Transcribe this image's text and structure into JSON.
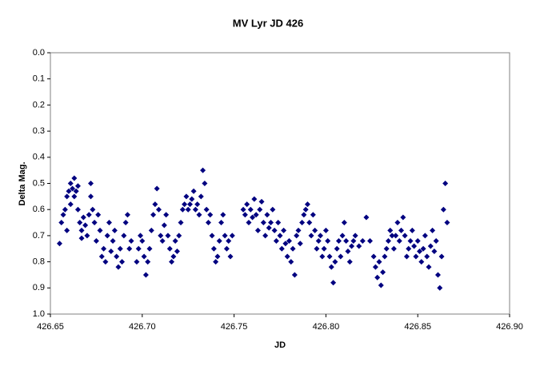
{
  "chart_data": {
    "type": "scatter",
    "title": "MV Lyr JD 426",
    "xlabel": "JD",
    "ylabel": "Delta Mag.",
    "color": "#000080",
    "marker": "diamond",
    "y_inverted": true,
    "xlim": [
      426.65,
      426.9
    ],
    "xticks": [
      426.65,
      {
        "value": 426.7,
        "label": "426.70"
      },
      426.75,
      {
        "value": 426.8,
        "label": "426.80"
      },
      426.85,
      {
        "value": 426.9,
        "label": "426.90"
      }
    ],
    "ylim": [
      0,
      1
    ],
    "yticks": [
      {
        "value": 0,
        "label": "0.0"
      },
      0.1,
      0.2,
      0.3,
      0.4,
      0.5,
      0.6,
      0.7,
      0.8,
      0.9,
      {
        "value": 1,
        "label": "1.0"
      }
    ],
    "x": [
      426.655,
      426.656,
      426.657,
      426.658,
      426.659,
      426.659,
      426.66,
      426.661,
      426.661,
      426.662,
      426.663,
      426.663,
      426.664,
      426.665,
      426.665,
      426.666,
      426.667,
      426.667,
      426.668,
      426.669,
      426.67,
      426.671,
      426.672,
      426.672,
      426.673,
      426.674,
      426.675,
      426.676,
      426.677,
      426.678,
      426.679,
      426.68,
      426.681,
      426.682,
      426.683,
      426.684,
      426.685,
      426.686,
      426.687,
      426.688,
      426.689,
      426.69,
      426.691,
      426.692,
      426.693,
      426.694,
      426.697,
      426.698,
      426.699,
      426.7,
      426.701,
      426.702,
      426.703,
      426.704,
      426.705,
      426.706,
      426.707,
      426.708,
      426.709,
      426.71,
      426.711,
      426.712,
      426.713,
      426.714,
      426.715,
      426.716,
      426.717,
      426.718,
      426.719,
      426.72,
      426.721,
      426.722,
      426.723,
      426.724,
      426.725,
      426.726,
      426.727,
      426.728,
      426.729,
      426.73,
      426.731,
      426.732,
      426.733,
      426.734,
      426.735,
      426.736,
      426.737,
      426.738,
      426.739,
      426.74,
      426.741,
      426.742,
      426.743,
      426.744,
      426.745,
      426.746,
      426.747,
      426.748,
      426.749,
      426.755,
      426.756,
      426.757,
      426.758,
      426.759,
      426.76,
      426.761,
      426.762,
      426.763,
      426.764,
      426.765,
      426.766,
      426.767,
      426.768,
      426.769,
      426.77,
      426.771,
      426.772,
      426.773,
      426.774,
      426.775,
      426.776,
      426.777,
      426.778,
      426.779,
      426.78,
      426.781,
      426.782,
      426.783,
      426.784,
      426.785,
      426.786,
      426.787,
      426.788,
      426.789,
      426.79,
      426.791,
      426.792,
      426.793,
      426.794,
      426.795,
      426.796,
      426.797,
      426.798,
      426.799,
      426.8,
      426.801,
      426.802,
      426.803,
      426.804,
      426.805,
      426.806,
      426.807,
      426.808,
      426.809,
      426.81,
      426.811,
      426.812,
      426.813,
      426.814,
      426.815,
      426.816,
      426.818,
      426.82,
      426.822,
      426.824,
      426.826,
      426.827,
      426.828,
      426.829,
      426.83,
      426.831,
      426.832,
      426.833,
      426.834,
      426.835,
      426.836,
      426.837,
      426.838,
      426.839,
      426.84,
      426.841,
      426.842,
      426.843,
      426.844,
      426.845,
      426.846,
      426.847,
      426.848,
      426.849,
      426.85,
      426.851,
      426.852,
      426.853,
      426.854,
      426.855,
      426.856,
      426.857,
      426.858,
      426.859,
      426.86,
      426.861,
      426.862,
      426.863,
      426.864,
      426.865,
      426.866
    ],
    "values": [
      0.73,
      0.65,
      0.62,
      0.6,
      0.55,
      0.68,
      0.53,
      0.58,
      0.5,
      0.52,
      0.48,
      0.55,
      0.53,
      0.51,
      0.6,
      0.65,
      0.68,
      0.71,
      0.63,
      0.66,
      0.7,
      0.62,
      0.55,
      0.5,
      0.6,
      0.65,
      0.72,
      0.62,
      0.68,
      0.78,
      0.75,
      0.8,
      0.7,
      0.65,
      0.76,
      0.72,
      0.68,
      0.78,
      0.82,
      0.75,
      0.8,
      0.7,
      0.65,
      0.62,
      0.75,
      0.72,
      0.8,
      0.75,
      0.7,
      0.72,
      0.78,
      0.85,
      0.8,
      0.75,
      0.68,
      0.62,
      0.58,
      0.52,
      0.6,
      0.7,
      0.72,
      0.66,
      0.62,
      0.7,
      0.75,
      0.8,
      0.78,
      0.72,
      0.76,
      0.7,
      0.65,
      0.6,
      0.58,
      0.55,
      0.6,
      0.58,
      0.56,
      0.53,
      0.6,
      0.58,
      0.62,
      0.55,
      0.45,
      0.5,
      0.6,
      0.65,
      0.62,
      0.7,
      0.75,
      0.8,
      0.78,
      0.72,
      0.65,
      0.62,
      0.7,
      0.75,
      0.72,
      0.78,
      0.7,
      0.6,
      0.62,
      0.58,
      0.65,
      0.6,
      0.63,
      0.56,
      0.62,
      0.68,
      0.6,
      0.57,
      0.65,
      0.7,
      0.62,
      0.67,
      0.65,
      0.6,
      0.68,
      0.72,
      0.65,
      0.7,
      0.75,
      0.68,
      0.73,
      0.78,
      0.72,
      0.8,
      0.75,
      0.85,
      0.7,
      0.68,
      0.73,
      0.65,
      0.62,
      0.6,
      0.58,
      0.65,
      0.7,
      0.62,
      0.68,
      0.75,
      0.72,
      0.7,
      0.78,
      0.75,
      0.68,
      0.72,
      0.78,
      0.82,
      0.88,
      0.8,
      0.75,
      0.72,
      0.78,
      0.7,
      0.65,
      0.72,
      0.76,
      0.8,
      0.74,
      0.72,
      0.7,
      0.74,
      0.72,
      0.63,
      0.72,
      0.78,
      0.82,
      0.86,
      0.8,
      0.89,
      0.84,
      0.78,
      0.75,
      0.72,
      0.68,
      0.7,
      0.75,
      0.7,
      0.65,
      0.72,
      0.68,
      0.63,
      0.7,
      0.78,
      0.75,
      0.72,
      0.68,
      0.74,
      0.78,
      0.72,
      0.76,
      0.8,
      0.75,
      0.7,
      0.78,
      0.82,
      0.74,
      0.68,
      0.76,
      0.72,
      0.85,
      0.9,
      0.78,
      0.6,
      0.5,
      0.65
    ]
  }
}
